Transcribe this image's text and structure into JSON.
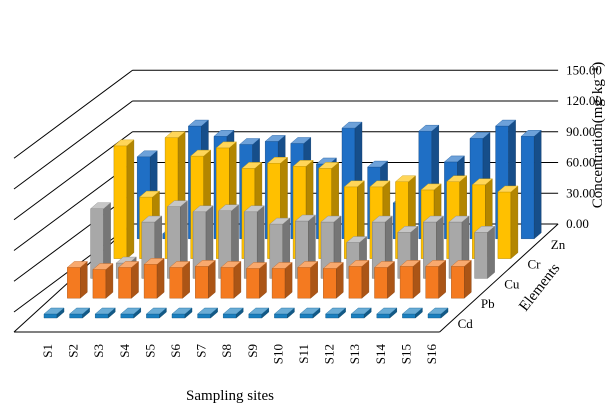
{
  "chart_data": {
    "type": "bar",
    "style": "3d-grouped",
    "categories": [
      "S1",
      "S2",
      "S3",
      "S4",
      "S5",
      "S6",
      "S7",
      "S8",
      "S9",
      "S10",
      "S11",
      "S12",
      "S13",
      "S14",
      "S15",
      "S16"
    ],
    "series": [
      {
        "name": "Cd",
        "color": "#1a7fbf",
        "values": [
          0.2,
          0.2,
          0.2,
          0.2,
          0.2,
          0.2,
          0.2,
          0.2,
          0.2,
          0.2,
          0.2,
          0.2,
          0.2,
          0.2,
          0.2,
          0.2
        ]
      },
      {
        "name": "Pb",
        "color": "#f47a20",
        "values": [
          30,
          28,
          30,
          33,
          30,
          31,
          30,
          29,
          29,
          30,
          29,
          31,
          30,
          31,
          31,
          31
        ]
      },
      {
        "name": "Cu",
        "color": "#a8a8a8",
        "values": [
          68,
          15,
          55,
          70,
          65,
          66,
          65,
          53,
          56,
          55,
          35,
          55,
          45,
          55,
          55,
          45
        ]
      },
      {
        "name": "Cr",
        "color": "#ffc000",
        "values": [
          110,
          60,
          118,
          100,
          108,
          88,
          93,
          90,
          88,
          70,
          70,
          75,
          67,
          75,
          72,
          65
        ]
      },
      {
        "name": "Zn",
        "color": "#1f6fc5",
        "values": [
          80,
          5,
          110,
          100,
          92,
          95,
          93,
          73,
          108,
          70,
          35,
          105,
          75,
          98,
          110,
          100
        ]
      }
    ],
    "ylabel": "Concentration(mg·kg⁻¹)",
    "xlabel": "Sampling sites",
    "depth_label": "Elements",
    "ylim": [
      0,
      150
    ],
    "yticks": [
      "0.00",
      "30.00",
      "60.00",
      "90.00",
      "120.00",
      "150.00"
    ],
    "grid": true
  }
}
